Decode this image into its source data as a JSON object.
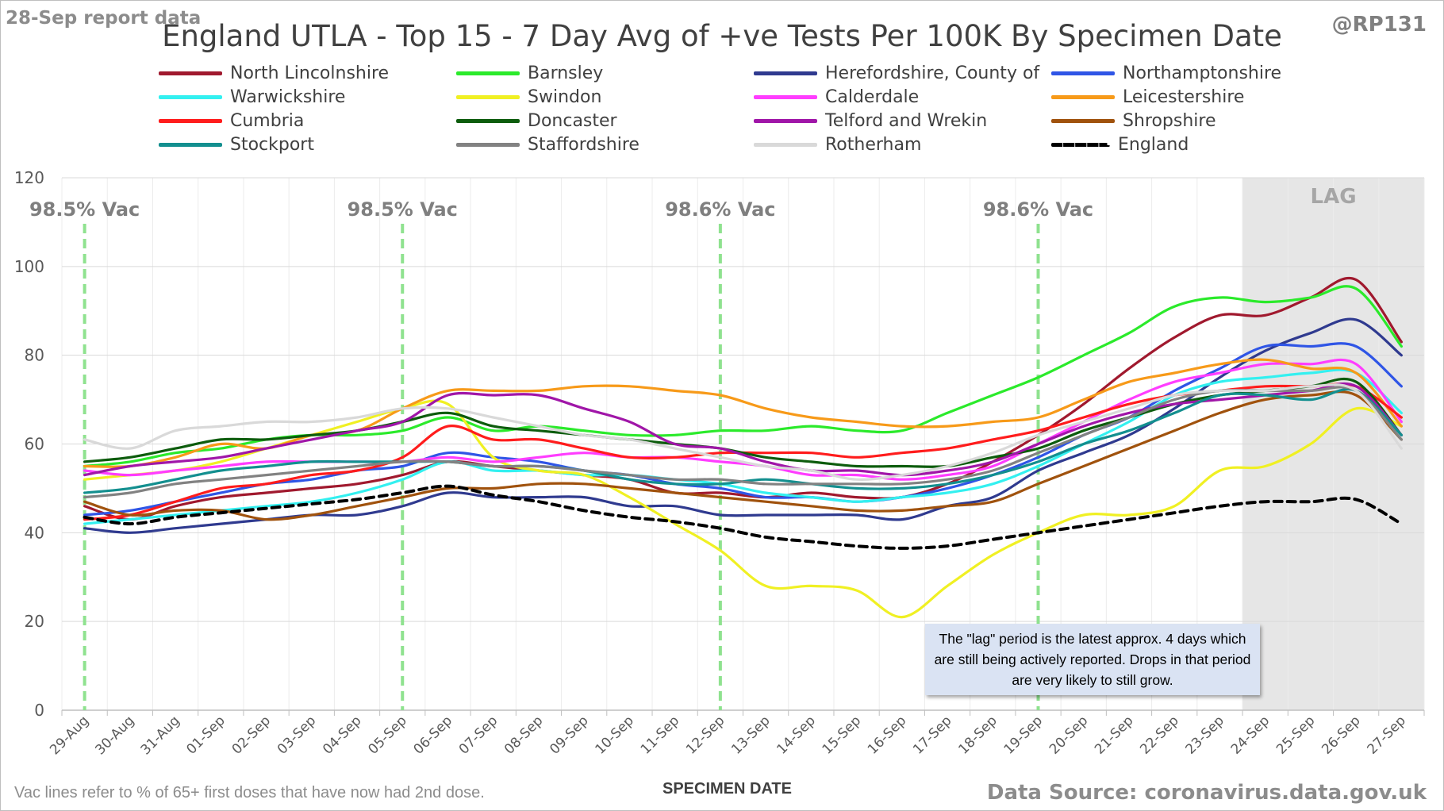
{
  "header": {
    "report_date": "28-Sep report data",
    "author": "@RP131",
    "title": "England UTLA - Top 15 - 7 Day Avg of +ve Tests Per 100K By Specimen Date"
  },
  "footer": {
    "footnote": "Vac lines refer to % of 65+ first doses that have now had 2nd dose.",
    "source": "Data Source: coronavirus.data.gov.uk"
  },
  "lag_note": "The \"lag\" period is the latest approx. 4 days which are still being actively reported. Drops in that period are very likely to still grow.",
  "chart_data": {
    "type": "line",
    "title": "England UTLA - Top 15 - 7 Day Avg of +ve Tests Per 100K By Specimen Date",
    "xlabel": "SPECIMEN DATE",
    "ylabel": "",
    "ylim": [
      0,
      120
    ],
    "yticks": [
      0,
      20,
      40,
      60,
      80,
      100,
      120
    ],
    "grid": true,
    "legend_position": "top",
    "categories": [
      "29-Aug",
      "30-Aug",
      "31-Aug",
      "01-Sep",
      "02-Sep",
      "03-Sep",
      "04-Sep",
      "05-Sep",
      "06-Sep",
      "07-Sep",
      "08-Sep",
      "09-Sep",
      "10-Sep",
      "11-Sep",
      "12-Sep",
      "13-Sep",
      "14-Sep",
      "15-Sep",
      "16-Sep",
      "17-Sep",
      "18-Sep",
      "19-Sep",
      "20-Sep",
      "21-Sep",
      "22-Sep",
      "23-Sep",
      "24-Sep",
      "25-Sep",
      "26-Sep",
      "27-Sep"
    ],
    "lag_region": {
      "from": "24-Sep",
      "to": "27-Sep",
      "label": "LAG"
    },
    "vac_lines": [
      {
        "date": "29-Aug",
        "label": "98.5% Vac"
      },
      {
        "date": "05-Sep",
        "label": "98.5% Vac"
      },
      {
        "date": "12-Sep",
        "label": "98.6% Vac"
      },
      {
        "date": "19-Sep",
        "label": "98.6% Vac"
      }
    ],
    "series": [
      {
        "name": "North Lincolnshire",
        "color": "#a0192e",
        "dashed": false,
        "values": [
          46,
          43,
          46,
          48,
          49,
          50,
          51,
          53,
          56,
          55,
          54,
          53,
          52,
          49,
          49,
          48,
          49,
          48,
          48,
          51,
          56,
          62,
          69,
          77,
          84,
          89,
          89,
          93,
          97,
          83
        ]
      },
      {
        "name": "Barnsley",
        "color": "#2bea2b",
        "dashed": false,
        "values": [
          55,
          56,
          58,
          59,
          61,
          62,
          62,
          63,
          66,
          63,
          64,
          63,
          62,
          62,
          63,
          63,
          64,
          63,
          63,
          67,
          71,
          75,
          80,
          85,
          91,
          93,
          92,
          93,
          95,
          82
        ]
      },
      {
        "name": "Herefordshire, County of",
        "color": "#2f3a8f",
        "dashed": false,
        "values": [
          41,
          40,
          41,
          42,
          43,
          44,
          44,
          46,
          49,
          48,
          48,
          48,
          46,
          46,
          44,
          44,
          44,
          44,
          43,
          46,
          48,
          54,
          58,
          62,
          68,
          75,
          81,
          85,
          88,
          80
        ]
      },
      {
        "name": "Northamptonshire",
        "color": "#2f55e6",
        "dashed": false,
        "values": [
          44,
          45,
          47,
          49,
          51,
          52,
          54,
          55,
          58,
          57,
          56,
          54,
          53,
          51,
          50,
          48,
          48,
          47,
          48,
          50,
          53,
          57,
          62,
          66,
          72,
          77,
          82,
          82,
          82,
          73
        ]
      },
      {
        "name": "Warwickshire",
        "color": "#33f0f0",
        "dashed": false,
        "values": [
          42,
          43,
          44,
          45,
          46,
          47,
          49,
          52,
          56,
          54,
          54,
          53,
          53,
          52,
          51,
          49,
          48,
          47,
          48,
          49,
          51,
          55,
          60,
          65,
          71,
          74,
          75,
          76,
          76,
          67
        ]
      },
      {
        "name": "Swindon",
        "color": "#f0f023",
        "dashed": false,
        "values": [
          52,
          53,
          54,
          56,
          59,
          62,
          65,
          68,
          69,
          57,
          54,
          53,
          48,
          42,
          36,
          28,
          28,
          27,
          21,
          28,
          35,
          40,
          44,
          44,
          46,
          54,
          55,
          60,
          68,
          64
        ]
      },
      {
        "name": "Calderdale",
        "color": "#ff3dff",
        "dashed": false,
        "values": [
          54,
          53,
          54,
          55,
          56,
          56,
          56,
          56,
          57,
          56,
          57,
          58,
          57,
          57,
          56,
          55,
          53,
          53,
          52,
          53,
          55,
          60,
          65,
          70,
          74,
          76,
          78,
          78,
          78,
          65
        ]
      },
      {
        "name": "Leicestershire",
        "color": "#f79a19",
        "dashed": false,
        "values": [
          55,
          55,
          57,
          60,
          59,
          62,
          63,
          68,
          72,
          72,
          72,
          73,
          73,
          72,
          71,
          68,
          66,
          65,
          64,
          64,
          65,
          66,
          70,
          74,
          76,
          78,
          79,
          77,
          76,
          64
        ]
      },
      {
        "name": "Cumbria",
        "color": "#ff1c1c",
        "dashed": false,
        "values": [
          43,
          44,
          47,
          50,
          51,
          53,
          54,
          57,
          64,
          61,
          61,
          59,
          57,
          57,
          58,
          58,
          58,
          57,
          58,
          59,
          61,
          63,
          66,
          69,
          71,
          72,
          73,
          73,
          73,
          66
        ]
      },
      {
        "name": "Doncaster",
        "color": "#0d5c0d",
        "dashed": false,
        "values": [
          56,
          57,
          59,
          61,
          61,
          62,
          63,
          65,
          67,
          64,
          63,
          62,
          61,
          60,
          59,
          57,
          56,
          55,
          55,
          55,
          57,
          59,
          63,
          66,
          69,
          71,
          72,
          73,
          74,
          62
        ]
      },
      {
        "name": "Telford and Wrekin",
        "color": "#a016a8",
        "dashed": false,
        "values": [
          53,
          55,
          56,
          57,
          59,
          61,
          63,
          65,
          71,
          71,
          71,
          68,
          65,
          60,
          59,
          56,
          54,
          54,
          53,
          54,
          56,
          60,
          64,
          67,
          69,
          70,
          71,
          72,
          73,
          62
        ]
      },
      {
        "name": "Shropshire",
        "color": "#a0520d",
        "dashed": false,
        "values": [
          47,
          44,
          45,
          45,
          43,
          44,
          46,
          48,
          50,
          50,
          51,
          51,
          50,
          49,
          48,
          47,
          46,
          45,
          45,
          46,
          47,
          51,
          55,
          59,
          63,
          67,
          70,
          71,
          71,
          61
        ]
      },
      {
        "name": "Stockport",
        "color": "#138f8f",
        "dashed": false,
        "values": [
          49,
          50,
          52,
          54,
          55,
          56,
          56,
          56,
          56,
          55,
          55,
          54,
          52,
          51,
          51,
          52,
          51,
          50,
          50,
          51,
          53,
          56,
          60,
          63,
          67,
          71,
          71,
          70,
          72,
          62
        ]
      },
      {
        "name": "Staffordshire",
        "color": "#828282",
        "dashed": false,
        "values": [
          48,
          49,
          51,
          52,
          53,
          54,
          55,
          56,
          56,
          55,
          55,
          54,
          53,
          52,
          52,
          51,
          51,
          51,
          51,
          52,
          54,
          58,
          62,
          66,
          70,
          72,
          72,
          72,
          72,
          61
        ]
      },
      {
        "name": "Rotherham",
        "color": "#d9d9d9",
        "dashed": false,
        "values": [
          61,
          59,
          63,
          64,
          65,
          65,
          66,
          68,
          68,
          66,
          64,
          62,
          61,
          59,
          57,
          55,
          54,
          52,
          53,
          55,
          58,
          62,
          65,
          68,
          71,
          72,
          72,
          73,
          72,
          59
        ]
      },
      {
        "name": "England",
        "color": "#000000",
        "dashed": true,
        "values": [
          43.5,
          42,
          43.5,
          44.5,
          45.5,
          46.5,
          47.5,
          49,
          50.5,
          48.5,
          47,
          45,
          43.5,
          42.5,
          41,
          39,
          38,
          37,
          36.5,
          37,
          38.5,
          40,
          41.5,
          43,
          44.5,
          46,
          47,
          47,
          47.5,
          42
        ]
      }
    ]
  }
}
